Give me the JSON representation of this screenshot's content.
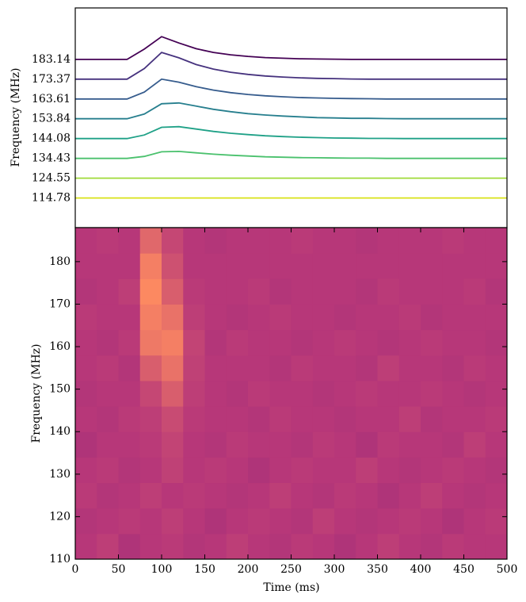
{
  "chart_data": [
    {
      "type": "line",
      "ylabel": "Frequency (MHz)",
      "x": [
        0,
        20,
        40,
        60,
        80,
        100,
        120,
        140,
        160,
        180,
        200,
        220,
        240,
        260,
        280,
        300,
        320,
        340,
        360,
        380,
        400,
        420,
        440,
        460,
        480,
        500
      ],
      "xlim": [
        0,
        500
      ],
      "ylim": [
        -1.5,
        9.6
      ],
      "yticks": [
        {
          "value": 7,
          "label": "183.14"
        },
        {
          "value": 6,
          "label": "173.37"
        },
        {
          "value": 5,
          "label": "163.61"
        },
        {
          "value": 4,
          "label": "153.84"
        },
        {
          "value": 3,
          "label": "144.08"
        },
        {
          "value": 2,
          "label": "134.43"
        },
        {
          "value": 1,
          "label": "124.55"
        },
        {
          "value": 0,
          "label": "114.78"
        }
      ],
      "series": [
        {
          "color": "#440154",
          "values": [
            7,
            7,
            7,
            7,
            7.52,
            8.15,
            7.83,
            7.54,
            7.35,
            7.23,
            7.15,
            7.09,
            7.06,
            7.03,
            7.02,
            7.01,
            7,
            7,
            7,
            7,
            7,
            7,
            7,
            7,
            7,
            7
          ]
        },
        {
          "color": "#46327e",
          "values": [
            6,
            6,
            6,
            6,
            6.54,
            7.35,
            7.08,
            6.74,
            6.51,
            6.35,
            6.24,
            6.16,
            6.11,
            6.07,
            6.04,
            6.03,
            6.01,
            6,
            6,
            6,
            6,
            6,
            6,
            6,
            6,
            6
          ]
        },
        {
          "color": "#365c8d",
          "values": [
            5,
            5,
            5,
            5,
            5.35,
            6,
            5.85,
            5.62,
            5.45,
            5.32,
            5.23,
            5.16,
            5.11,
            5.07,
            5.05,
            5.03,
            5.02,
            5.01,
            5,
            5,
            5,
            5,
            5,
            5,
            5,
            5
          ]
        },
        {
          "color": "#277f8e",
          "values": [
            4,
            4,
            4,
            4,
            4.24,
            4.76,
            4.8,
            4.64,
            4.48,
            4.36,
            4.26,
            4.19,
            4.14,
            4.1,
            4.06,
            4.04,
            4.02,
            4.02,
            4.01,
            4,
            4,
            4,
            4,
            4,
            4,
            4
          ]
        },
        {
          "color": "#1fa187",
          "values": [
            3,
            3,
            3,
            3,
            3.18,
            3.57,
            3.6,
            3.48,
            3.36,
            3.27,
            3.2,
            3.14,
            3.1,
            3.07,
            3.05,
            3.03,
            3.02,
            3.01,
            3.01,
            3,
            3,
            3,
            3,
            3,
            3,
            3
          ]
        },
        {
          "color": "#4ac16d",
          "values": [
            2,
            2,
            2,
            2,
            2.1,
            2.33,
            2.35,
            2.28,
            2.21,
            2.16,
            2.12,
            2.08,
            2.06,
            2.04,
            2.03,
            2.02,
            2.01,
            2.01,
            2,
            2,
            2,
            2,
            2,
            2,
            2,
            2
          ]
        },
        {
          "color": "#a0da39",
          "values": [
            1,
            1,
            1,
            1,
            1,
            1,
            1,
            1,
            1,
            1,
            1,
            1,
            1,
            1,
            1,
            1,
            1,
            1,
            1,
            1,
            1,
            1,
            1,
            1,
            1,
            1
          ]
        },
        {
          "color": "#d8e219",
          "values": [
            0,
            0,
            0,
            0,
            0,
            0,
            0,
            0,
            0,
            0,
            0,
            0,
            0,
            0,
            0,
            0,
            0,
            0,
            0,
            0,
            0,
            0,
            0,
            0,
            0,
            0
          ]
        }
      ]
    },
    {
      "type": "heatmap",
      "xlabel": "Time (ms)",
      "ylabel": "Frequency (MHz)",
      "colormap": "magma",
      "xlim": [
        0,
        500
      ],
      "ylim": [
        110,
        188
      ],
      "xticks": [
        0,
        50,
        100,
        150,
        200,
        250,
        300,
        350,
        400,
        450,
        500
      ],
      "yticks": [
        110,
        120,
        130,
        140,
        150,
        160,
        170,
        180
      ],
      "xbins": [
        0,
        25,
        50,
        75,
        100,
        125,
        150,
        175,
        200,
        225,
        250,
        275,
        300,
        325,
        350,
        375,
        400,
        425,
        450,
        475,
        500
      ],
      "ybins": [
        110,
        116,
        122,
        128,
        134,
        140,
        146,
        152,
        158,
        164,
        170,
        176,
        182,
        188
      ],
      "z": [
        [
          0.5,
          0.52,
          0.48,
          0.5,
          0.51,
          0.49,
          0.5,
          0.52,
          0.5,
          0.49,
          0.51,
          0.5,
          0.48,
          0.5,
          0.52,
          0.5,
          0.49,
          0.51,
          0.5,
          0.5
        ],
        [
          0.49,
          0.5,
          0.51,
          0.5,
          0.52,
          0.5,
          0.48,
          0.5,
          0.51,
          0.5,
          0.49,
          0.52,
          0.5,
          0.49,
          0.5,
          0.51,
          0.5,
          0.48,
          0.5,
          0.51
        ],
        [
          0.51,
          0.49,
          0.5,
          0.52,
          0.5,
          0.51,
          0.5,
          0.49,
          0.5,
          0.52,
          0.5,
          0.49,
          0.51,
          0.5,
          0.48,
          0.5,
          0.52,
          0.5,
          0.49,
          0.5
        ],
        [
          0.5,
          0.51,
          0.49,
          0.5,
          0.53,
          0.5,
          0.51,
          0.5,
          0.48,
          0.5,
          0.51,
          0.5,
          0.5,
          0.52,
          0.5,
          0.49,
          0.5,
          0.51,
          0.5,
          0.49
        ],
        [
          0.48,
          0.5,
          0.5,
          0.51,
          0.54,
          0.5,
          0.49,
          0.51,
          0.5,
          0.5,
          0.49,
          0.51,
          0.5,
          0.48,
          0.51,
          0.5,
          0.5,
          0.49,
          0.52,
          0.5
        ],
        [
          0.5,
          0.49,
          0.51,
          0.52,
          0.56,
          0.51,
          0.5,
          0.5,
          0.49,
          0.51,
          0.5,
          0.5,
          0.49,
          0.5,
          0.5,
          0.52,
          0.49,
          0.5,
          0.5,
          0.51
        ],
        [
          0.49,
          0.5,
          0.5,
          0.55,
          0.62,
          0.52,
          0.5,
          0.49,
          0.51,
          0.5,
          0.5,
          0.49,
          0.5,
          0.51,
          0.5,
          0.5,
          0.51,
          0.5,
          0.49,
          0.5
        ],
        [
          0.5,
          0.51,
          0.49,
          0.62,
          0.68,
          0.53,
          0.5,
          0.5,
          0.5,
          0.49,
          0.51,
          0.5,
          0.5,
          0.49,
          0.52,
          0.5,
          0.5,
          0.49,
          0.51,
          0.5
        ],
        [
          0.5,
          0.49,
          0.51,
          0.7,
          0.72,
          0.54,
          0.49,
          0.51,
          0.5,
          0.5,
          0.49,
          0.5,
          0.51,
          0.5,
          0.49,
          0.5,
          0.51,
          0.5,
          0.5,
          0.49
        ],
        [
          0.51,
          0.5,
          0.5,
          0.72,
          0.68,
          0.52,
          0.5,
          0.49,
          0.5,
          0.51,
          0.5,
          0.5,
          0.49,
          0.5,
          0.5,
          0.51,
          0.49,
          0.5,
          0.5,
          0.5
        ],
        [
          0.49,
          0.5,
          0.52,
          0.75,
          0.62,
          0.51,
          0.5,
          0.5,
          0.51,
          0.49,
          0.5,
          0.5,
          0.5,
          0.49,
          0.51,
          0.5,
          0.5,
          0.5,
          0.51,
          0.49
        ],
        [
          0.5,
          0.5,
          0.5,
          0.72,
          0.58,
          0.5,
          0.5,
          0.5,
          0.5,
          0.5,
          0.5,
          0.5,
          0.5,
          0.5,
          0.5,
          0.5,
          0.5,
          0.5,
          0.5,
          0.5
        ],
        [
          0.5,
          0.51,
          0.5,
          0.65,
          0.55,
          0.5,
          0.49,
          0.5,
          0.5,
          0.5,
          0.51,
          0.5,
          0.5,
          0.49,
          0.5,
          0.5,
          0.5,
          0.51,
          0.5,
          0.5
        ]
      ]
    }
  ]
}
